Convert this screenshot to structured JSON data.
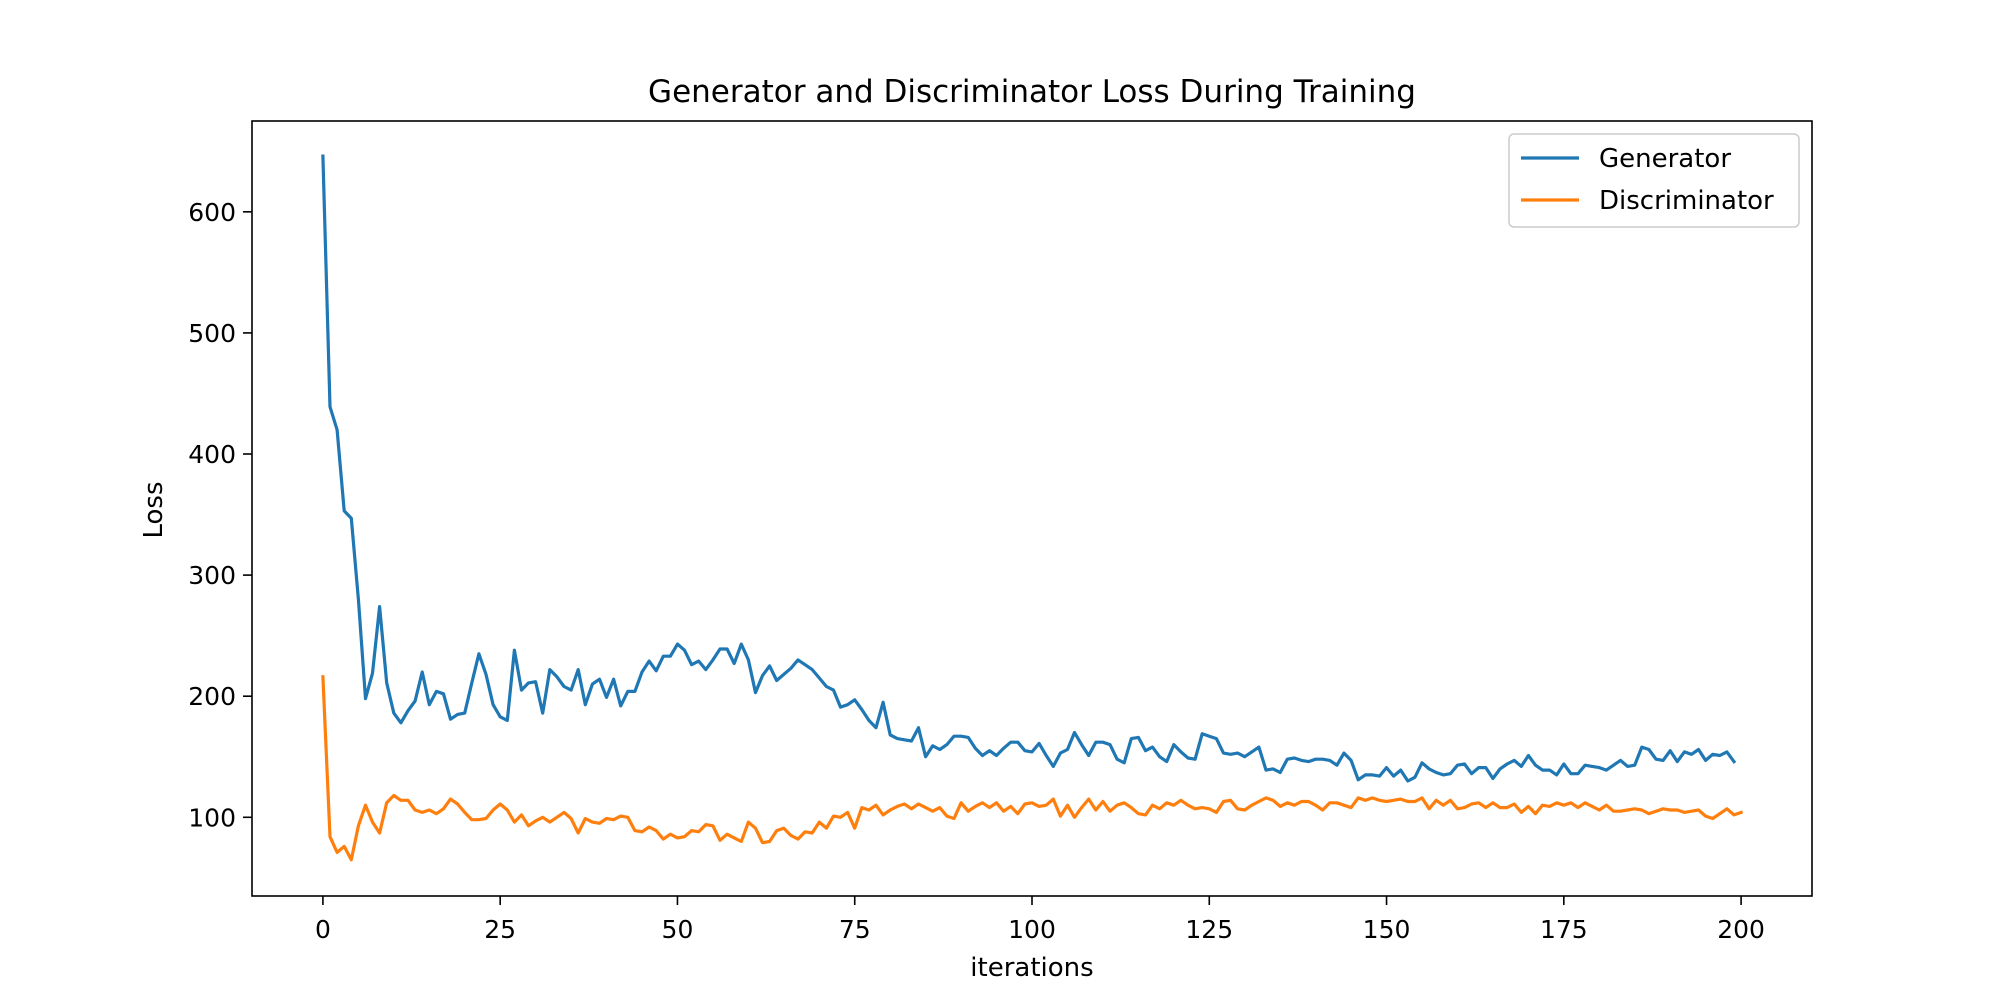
{
  "chart_data": {
    "type": "line",
    "title": "Generator and Discriminator Loss During Training",
    "xlabel": "iterations",
    "ylabel": "Loss",
    "xlim": [
      -10,
      210
    ],
    "ylim": [
      35,
      675
    ],
    "xticks": [
      0,
      25,
      50,
      75,
      100,
      125,
      150,
      175,
      200
    ],
    "yticks": [
      100,
      200,
      300,
      400,
      500,
      600
    ],
    "grid": false,
    "legend_position": "top-right",
    "series": [
      {
        "name": "Generator",
        "color": "#1f77b4",
        "values": [
          646,
          439,
          420,
          353,
          347,
          280,
          198,
          219,
          274,
          211,
          186,
          178,
          188,
          196,
          220,
          193,
          204,
          202,
          181,
          185,
          186,
          211,
          235,
          218,
          193,
          183,
          180,
          238,
          205,
          211,
          212,
          186,
          222,
          216,
          208,
          205,
          222,
          193,
          210,
          214,
          199,
          214,
          192,
          204,
          204,
          220,
          229,
          221,
          233,
          233,
          243,
          238,
          226,
          229,
          222,
          230,
          239,
          239,
          227,
          243,
          230,
          203,
          217,
          225,
          213,
          218,
          223,
          230,
          226,
          222,
          215,
          208,
          205,
          191,
          193,
          197,
          189,
          180,
          174,
          195,
          168,
          165,
          164,
          163,
          174,
          150,
          159,
          156,
          160,
          167,
          167,
          166,
          157,
          151,
          155,
          151,
          157,
          162,
          162,
          155,
          154,
          161,
          151,
          142,
          153,
          156,
          170,
          160,
          151,
          162,
          162,
          160,
          148,
          145,
          165,
          166,
          155,
          158,
          150,
          146,
          160,
          154,
          149,
          148,
          169,
          167,
          165,
          153,
          152,
          153,
          150,
          154,
          158,
          139,
          140,
          137,
          148,
          149,
          147,
          146,
          148,
          148,
          147,
          143,
          153,
          147,
          131,
          135,
          135,
          134,
          141,
          134,
          139,
          130,
          133,
          145,
          140,
          137,
          135,
          136,
          143,
          144,
          136,
          141,
          141,
          132,
          140,
          144,
          147,
          142,
          151,
          143,
          139,
          139,
          135,
          144,
          136,
          136,
          143,
          142,
          141,
          139,
          143,
          147,
          142,
          143,
          158,
          156,
          148,
          147,
          155,
          146,
          154,
          152,
          156,
          147,
          152,
          151,
          154,
          146
        ]
      },
      {
        "name": "Discriminator",
        "color": "#ff7f0e",
        "values": [
          216,
          84,
          71,
          76,
          65,
          93,
          110,
          96,
          87,
          112,
          118,
          114,
          114,
          106,
          104,
          106,
          103,
          107,
          115,
          111,
          104,
          98,
          98,
          99,
          106,
          111,
          106,
          96,
          102,
          93,
          97,
          100,
          96,
          100,
          104,
          99,
          87,
          99,
          96,
          95,
          99,
          98,
          101,
          100,
          89,
          88,
          92,
          89,
          82,
          86,
          83,
          84,
          89,
          88,
          94,
          93,
          81,
          86,
          83,
          80,
          96,
          91,
          79,
          80,
          89,
          91,
          85,
          82,
          88,
          87,
          96,
          91,
          101,
          100,
          104,
          91,
          108,
          106,
          110,
          102,
          106,
          109,
          111,
          107,
          111,
          108,
          105,
          108,
          101,
          99,
          112,
          105,
          109,
          112,
          108,
          112,
          105,
          109,
          103,
          111,
          112,
          109,
          110,
          115,
          101,
          110,
          100,
          108,
          115,
          106,
          113,
          105,
          110,
          112,
          108,
          103,
          102,
          110,
          107,
          112,
          110,
          114,
          110,
          107,
          108,
          107,
          104,
          113,
          114,
          107,
          106,
          110,
          113,
          116,
          114,
          109,
          112,
          110,
          113,
          113,
          110,
          106,
          112,
          112,
          110,
          108,
          116,
          114,
          116,
          114,
          113,
          114,
          115,
          113,
          113,
          116,
          107,
          114,
          110,
          114,
          107,
          108,
          111,
          112,
          108,
          112,
          108,
          108,
          111,
          104,
          109,
          103,
          110,
          109,
          112,
          110,
          112,
          108,
          112,
          109,
          106,
          110,
          105,
          105,
          106,
          107,
          106,
          103,
          105,
          107,
          106,
          106,
          104,
          105,
          106,
          101,
          99,
          103,
          107,
          102,
          104
        ]
      }
    ]
  }
}
